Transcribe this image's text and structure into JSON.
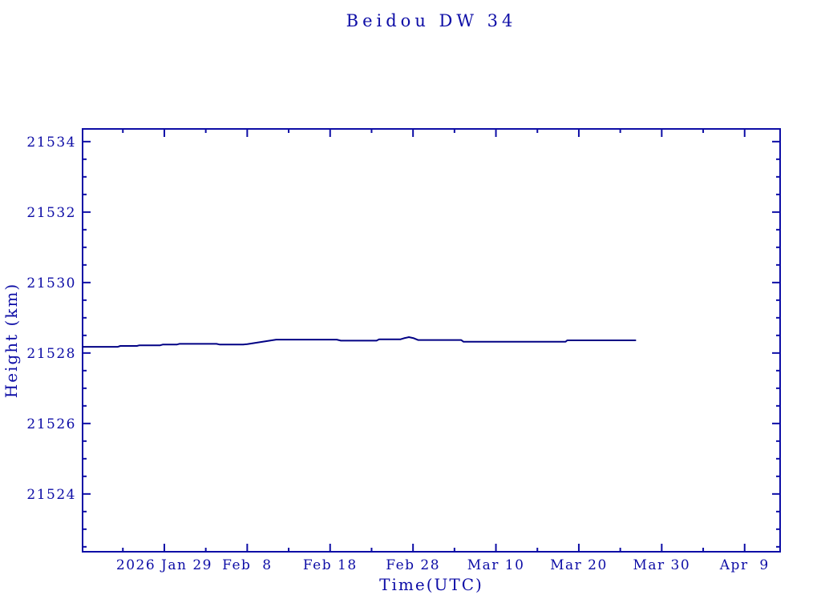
{
  "page": {
    "background": "#ffffff"
  },
  "chart_data": {
    "type": "line",
    "title": "Beidou DW 34",
    "xlabel": "Time(UTC)",
    "ylabel": "Height (km)",
    "grid": false,
    "legend": null,
    "x_axis_note": "days relative to tick '2026 Jan 29'",
    "xlim": [
      -9.86,
      74.28
    ],
    "ylim": [
      21522.36,
      21534.36
    ],
    "x_major_ticks": [
      {
        "d": 0,
        "label": "2026 Jan 29"
      },
      {
        "d": 10,
        "label": "Feb  8"
      },
      {
        "d": 20,
        "label": "Feb 18"
      },
      {
        "d": 30,
        "label": "Feb 28"
      },
      {
        "d": 40,
        "label": "Mar 10"
      },
      {
        "d": 50,
        "label": "Mar 20"
      },
      {
        "d": 60,
        "label": "Mar 30"
      },
      {
        "d": 70,
        "label": "Apr  9"
      }
    ],
    "x_minor_ticks": [
      -5,
      5,
      15,
      25,
      35,
      45,
      55,
      65
    ],
    "y_major_ticks": [
      {
        "v": 21524,
        "label": "21524"
      },
      {
        "v": 21526,
        "label": "21526"
      },
      {
        "v": 21528,
        "label": "21528"
      },
      {
        "v": 21530,
        "label": "21530"
      },
      {
        "v": 21532,
        "label": "21532"
      },
      {
        "v": 21534,
        "label": "21534"
      }
    ],
    "y_minor_step": 0.5,
    "series": [
      {
        "name": "height",
        "points": [
          [
            -9.86,
            21528.175
          ],
          [
            -5.6,
            21528.175
          ],
          [
            -5.3,
            21528.2
          ],
          [
            -3.3,
            21528.2
          ],
          [
            -3.0,
            21528.22
          ],
          [
            -0.5,
            21528.22
          ],
          [
            -0.2,
            21528.24
          ],
          [
            1.5,
            21528.24
          ],
          [
            1.8,
            21528.26
          ],
          [
            6.3,
            21528.26
          ],
          [
            6.7,
            21528.24
          ],
          [
            9.5,
            21528.24
          ],
          [
            10.0,
            21528.25
          ],
          [
            13.5,
            21528.38
          ],
          [
            20.8,
            21528.38
          ],
          [
            21.3,
            21528.35
          ],
          [
            25.6,
            21528.35
          ],
          [
            25.9,
            21528.39
          ],
          [
            28.5,
            21528.39
          ],
          [
            28.9,
            21528.42
          ],
          [
            29.5,
            21528.45
          ],
          [
            30.1,
            21528.42
          ],
          [
            30.6,
            21528.37
          ],
          [
            35.8,
            21528.37
          ],
          [
            36.1,
            21528.32
          ],
          [
            48.4,
            21528.32
          ],
          [
            48.6,
            21528.36
          ],
          [
            56.9,
            21528.36
          ]
        ]
      }
    ],
    "colors": {
      "axis": "#0d0da6",
      "text": "#0d0da6",
      "line": "#000084"
    }
  }
}
